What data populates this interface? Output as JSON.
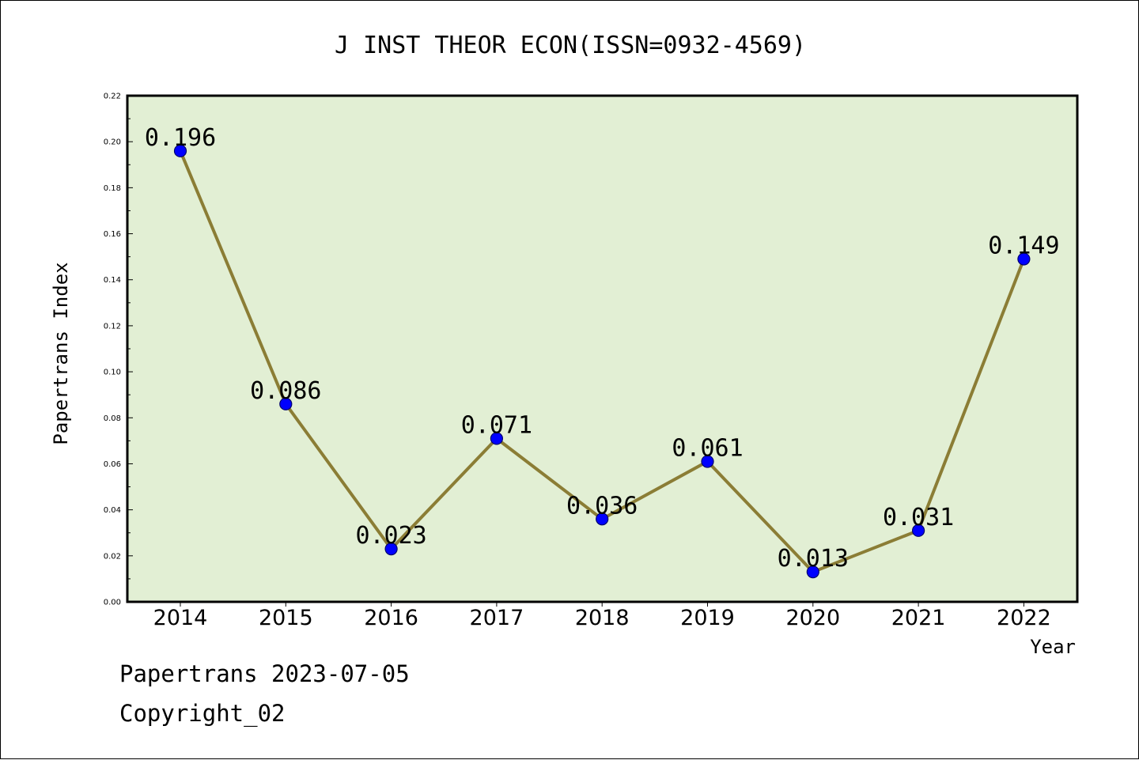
{
  "footer": {
    "line1": "Papertrans 2023-07-05",
    "line2": "Copyright_02"
  },
  "chart_data": {
    "type": "line",
    "title": "J INST THEOR ECON(ISSN=0932-4569)",
    "xlabel": "Year",
    "ylabel": "Papertrans Index",
    "categories": [
      "2014",
      "2015",
      "2016",
      "2017",
      "2018",
      "2019",
      "2020",
      "2021",
      "2022"
    ],
    "values": [
      0.196,
      0.086,
      0.023,
      0.071,
      0.036,
      0.061,
      0.013,
      0.031,
      0.149
    ],
    "data_labels": [
      "0.196",
      "0.086",
      "0.023",
      "0.071",
      "0.036",
      "0.061",
      "0.013",
      "0.031",
      "0.149"
    ],
    "ylim": [
      0,
      0.22
    ],
    "yticks": [
      "0.00",
      "0.02",
      "0.04",
      "0.06",
      "0.08",
      "0.10",
      "0.12",
      "0.14",
      "0.16",
      "0.18",
      "0.20",
      "0.22"
    ],
    "grid": false,
    "legend": "none",
    "colors": {
      "plot_background": "#e2efd4",
      "line": "#8b7d35",
      "marker_fill": "#0000ff",
      "marker_edge": "#00006e"
    }
  }
}
